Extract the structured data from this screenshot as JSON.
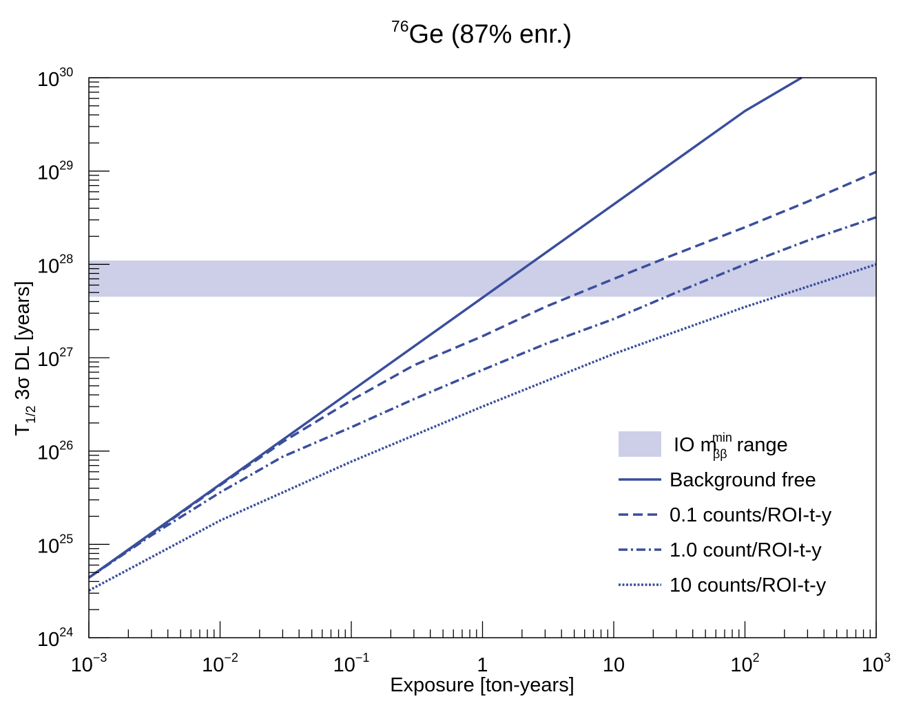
{
  "chart_data": {
    "type": "line",
    "title": {
      "sup": "76",
      "text": "Ge (87% enr.)"
    },
    "xlabel": "Exposure [ton-years]",
    "ylabel": {
      "base": "T",
      "sub": "1/2",
      "rest": " 3σ DL [years]"
    },
    "x_scale": "log",
    "y_scale": "log",
    "xlim": [
      0.001,
      1000
    ],
    "ylim": [
      1e+24,
      1e+30
    ],
    "x_ticks": [
      {
        "value": 0.001,
        "base": "10",
        "exp": "−3"
      },
      {
        "value": 0.01,
        "base": "10",
        "exp": "−2"
      },
      {
        "value": 0.1,
        "base": "10",
        "exp": "−1"
      },
      {
        "value": 1,
        "base": "1",
        "exp": ""
      },
      {
        "value": 10,
        "base": "10",
        "exp": ""
      },
      {
        "value": 100,
        "base": "10",
        "exp": "2"
      },
      {
        "value": 1000,
        "base": "10",
        "exp": "3"
      }
    ],
    "y_ticks": [
      {
        "value": 1e+24,
        "base": "10",
        "exp": "24"
      },
      {
        "value": 1e+25,
        "base": "10",
        "exp": "25"
      },
      {
        "value": 1e+26,
        "base": "10",
        "exp": "26"
      },
      {
        "value": 1e+27,
        "base": "10",
        "exp": "27"
      },
      {
        "value": 1e+28,
        "base": "10",
        "exp": "28"
      },
      {
        "value": 1e+29,
        "base": "10",
        "exp": "29"
      },
      {
        "value": 1e+30,
        "base": "10",
        "exp": "30"
      }
    ],
    "band": {
      "name_prefix": "IO m",
      "name_sup": "min",
      "name_sub": "ββ",
      "name_suffix": " range",
      "y_range": [
        4.5e+27,
        1.1e+28
      ],
      "color": "#cdcee8"
    },
    "series": [
      {
        "name": "Background free",
        "style": "solid",
        "x": [
          0.001,
          0.01,
          0.1,
          1,
          10,
          100,
          270
        ],
        "y": [
          4.4e+24,
          4.4e+25,
          4.4e+26,
          4.4e+27,
          4.4e+28,
          4.4e+29,
          1e+30
        ]
      },
      {
        "name": "0.1 counts/ROI-t-y",
        "style": "dashed",
        "x": [
          0.001,
          0.003,
          0.01,
          0.03,
          0.1,
          0.3,
          1,
          3,
          10,
          30,
          100,
          300,
          1000
        ],
        "y": [
          4.4e+24,
          1.3e+25,
          4.3e+25,
          1.25e+26,
          3.5e+26,
          8.3e+26,
          1.7e+27,
          3.5e+27,
          7e+27,
          1.3e+28,
          2.5e+28,
          4.7e+28,
          9.8e+28
        ]
      },
      {
        "name": "1.0 count/ROI-t-y",
        "style": "dashdot",
        "x": [
          0.001,
          0.003,
          0.01,
          0.03,
          0.1,
          0.3,
          1,
          3,
          10,
          30,
          100,
          300,
          1000
        ],
        "y": [
          4.4e+24,
          1.25e+25,
          3.6e+25,
          8.7e+25,
          1.8e+26,
          3.6e+26,
          7.4e+26,
          1.4e+27,
          2.6e+27,
          5e+27,
          1e+28,
          1.8e+28,
          3.2e+28
        ]
      },
      {
        "name": "10 counts/ROI-t-y",
        "style": "dotted",
        "x": [
          0.001,
          0.01,
          0.1,
          1,
          10,
          100,
          1000
        ],
        "y": [
          3.2e+24,
          1.8e+25,
          7.7e+25,
          3e+26,
          1.1e+27,
          3.5e+27,
          1e+28
        ]
      }
    ],
    "line_color": "#3a4e9c",
    "legend_position": "lower-right",
    "grid": false
  }
}
